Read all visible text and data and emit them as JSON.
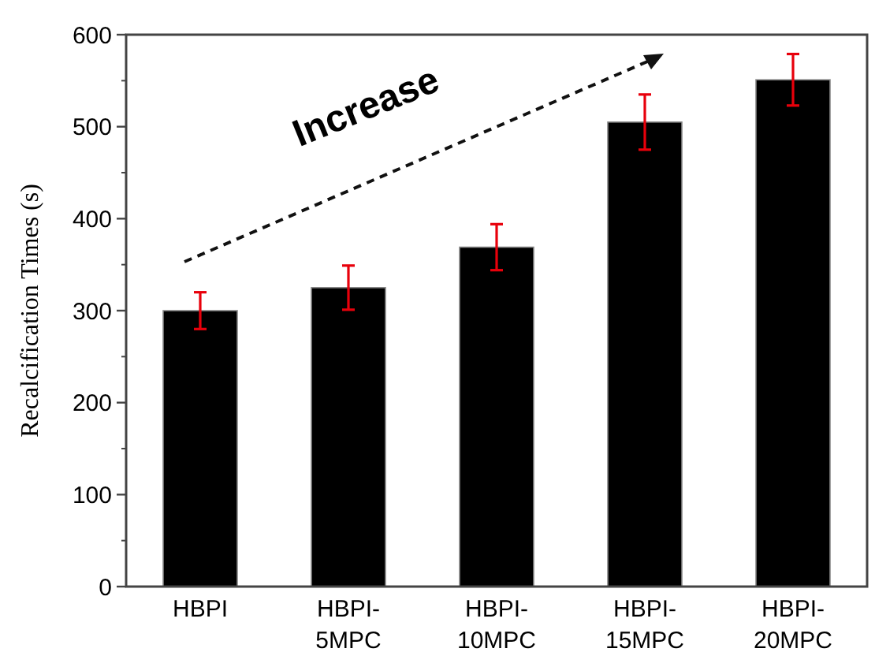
{
  "chart_data": {
    "type": "bar",
    "ylabel": "Recalcification Times (s)",
    "categories": [
      "HBPI",
      "HBPI-5MPC",
      "HBPI-10MPC",
      "HBPI-15MPC",
      "HBPI-20MPC"
    ],
    "series": [
      {
        "color": "#000000",
        "values": [
          300,
          325,
          369,
          505,
          551
        ],
        "errors": [
          20,
          24,
          25,
          30,
          28
        ]
      }
    ],
    "ylim": [
      0,
      600
    ],
    "yticks": [
      0,
      100,
      200,
      300,
      400,
      500,
      600
    ],
    "grid": false,
    "annotations": [
      "Increase"
    ]
  }
}
